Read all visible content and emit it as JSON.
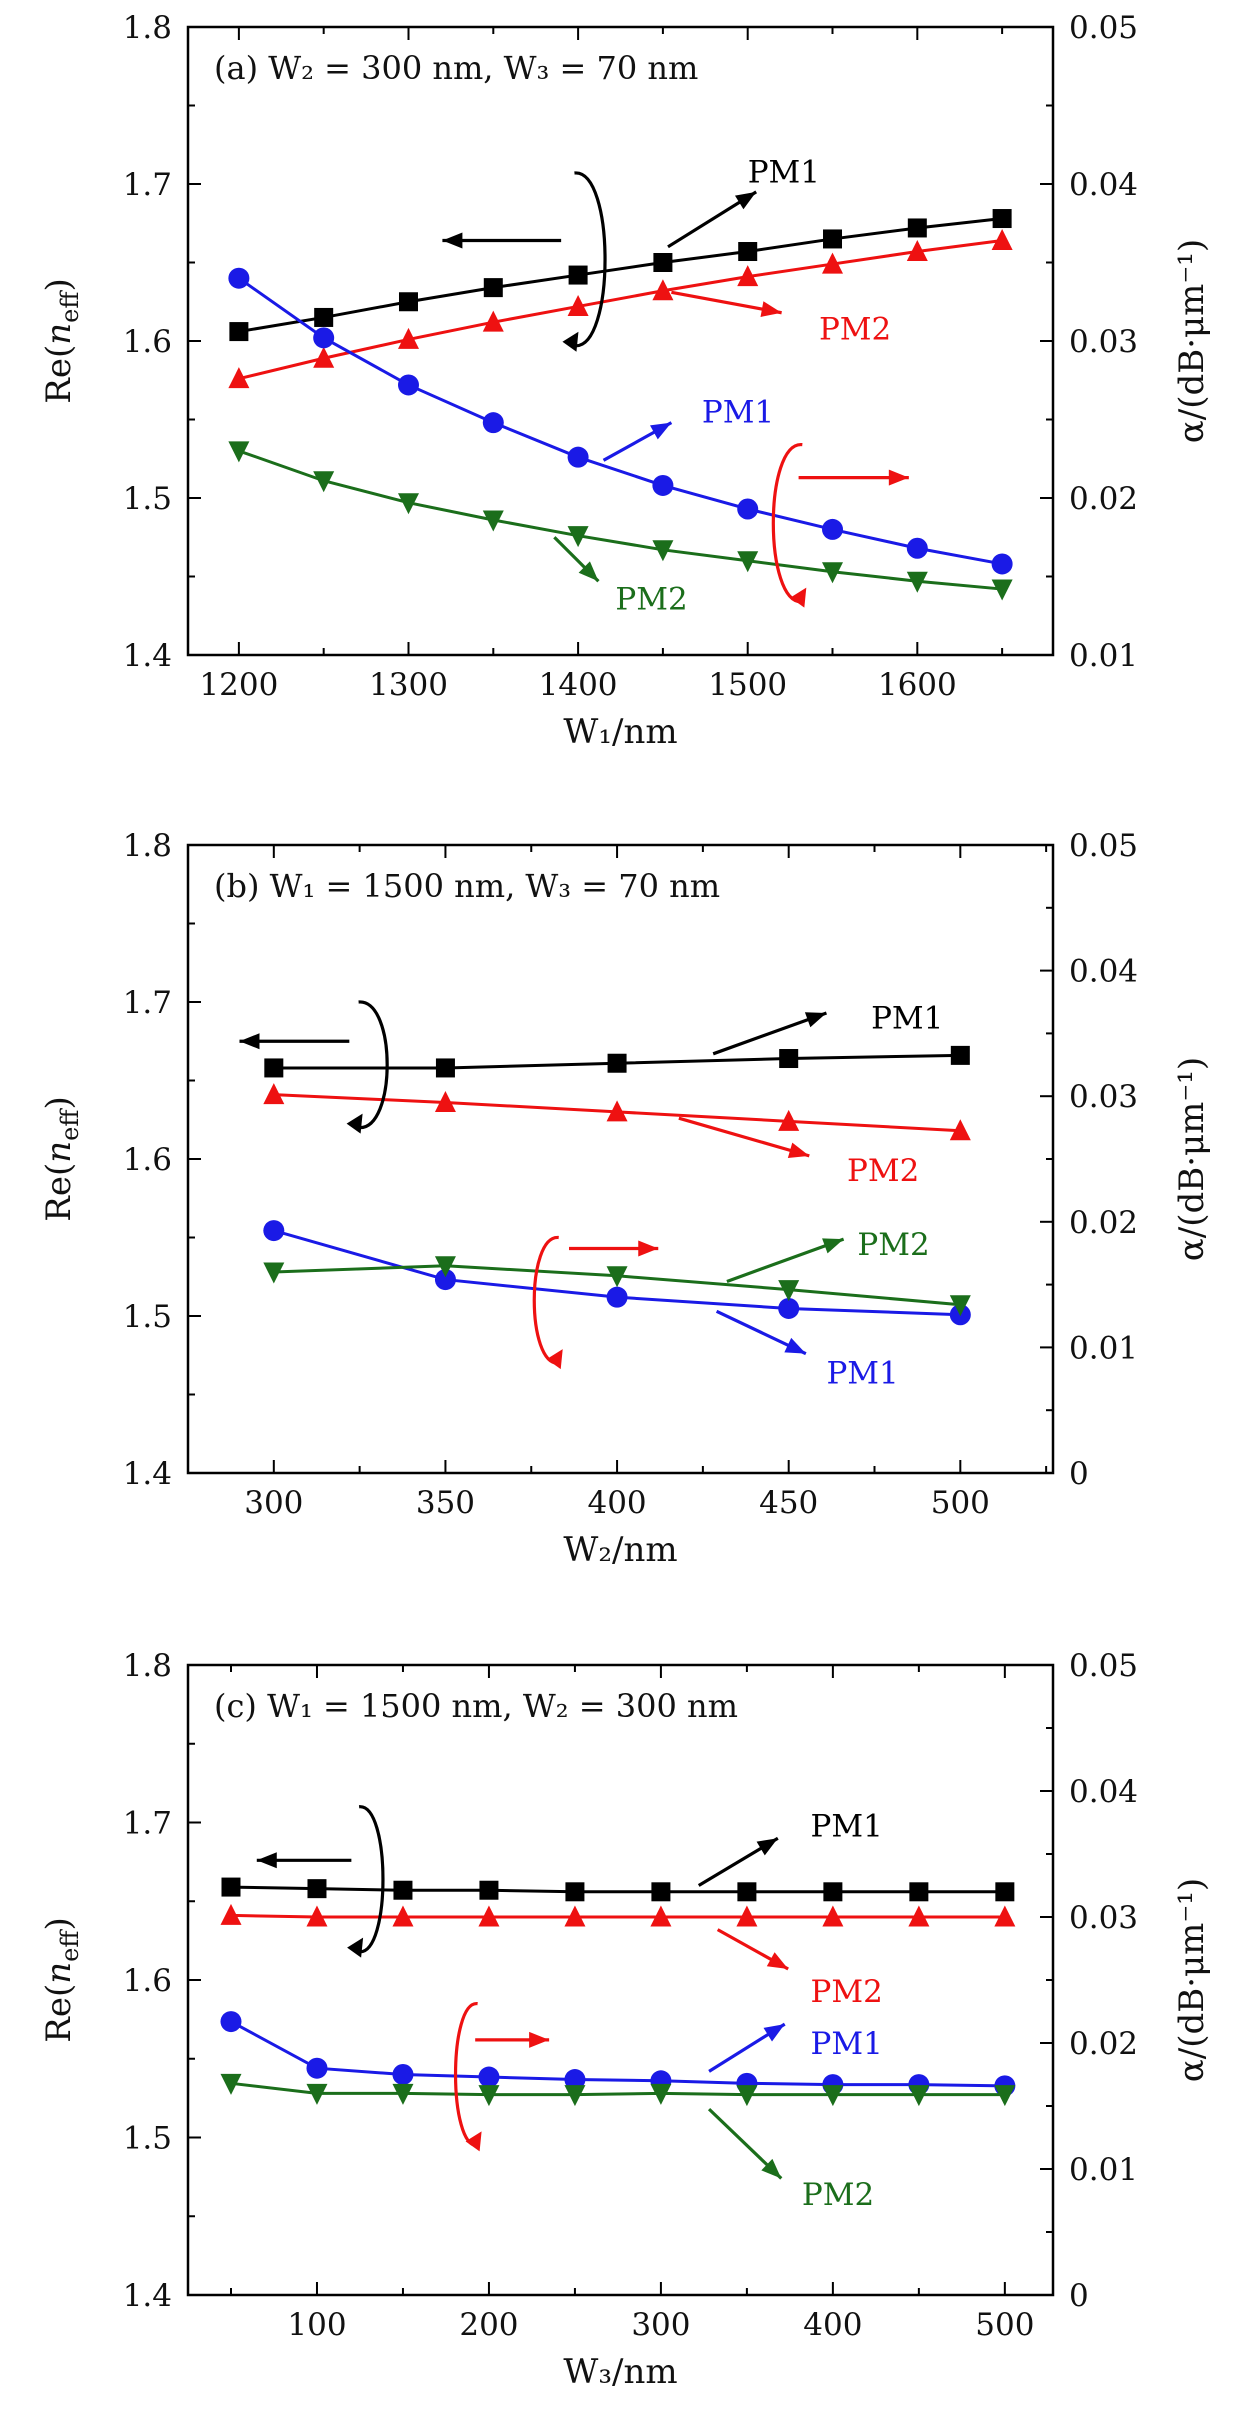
{
  "figure": {
    "panels": [
      "a",
      "b",
      "c"
    ]
  },
  "colors": {
    "black": "#000000",
    "red": "#ee1111",
    "blue": "#1a1ae6",
    "green": "#1b6e1b"
  },
  "chart_data": [
    {
      "id": "a",
      "type": "line",
      "title": "(a)   W₂ = 300 nm, W₃ = 70 nm",
      "xlabel": "W₁/nm",
      "ylabel": "Re(n_eff)",
      "ylabel_left_main": "Re(",
      "ylabel_left_n": "n",
      "ylabel_left_sub": "eff",
      "ylabel_left_close": ")",
      "ylabel_right": "α/(dB·μm⁻¹)",
      "xlim": [
        1170,
        1680
      ],
      "ylim_left": [
        1.4,
        1.8
      ],
      "ylim_right": [
        0.01,
        0.05
      ],
      "xticks": [
        1200,
        1300,
        1400,
        1500,
        1600
      ],
      "xtick_labels": [
        "1200",
        "1300",
        "1400",
        "1500",
        "1600"
      ],
      "yticks_left": [
        1.4,
        1.5,
        1.6,
        1.7,
        1.8
      ],
      "ytick_labels_left": [
        "1.4",
        "1.5",
        "1.6",
        "1.7",
        "1.8"
      ],
      "yticks_right": [
        0.01,
        0.02,
        0.03,
        0.04,
        0.05
      ],
      "ytick_labels_right": [
        "0.01",
        "0.02",
        "0.03",
        "0.04",
        "0.05"
      ],
      "x": [
        1200,
        1250,
        1300,
        1350,
        1400,
        1450,
        1500,
        1550,
        1600,
        1650
      ],
      "series": [
        {
          "name": "PM1 Re(n_eff)",
          "axis": "left",
          "color": "black",
          "marker": "square",
          "values": [
            1.606,
            1.615,
            1.625,
            1.634,
            1.642,
            1.65,
            1.657,
            1.665,
            1.672,
            1.678
          ]
        },
        {
          "name": "PM2 Re(n_eff)",
          "axis": "left",
          "color": "red",
          "marker": "triangle-up",
          "values": [
            1.576,
            1.589,
            1.601,
            1.612,
            1.622,
            1.632,
            1.641,
            1.649,
            1.657,
            1.664
          ]
        },
        {
          "name": "PM1 α",
          "axis": "right",
          "color": "blue",
          "marker": "circle",
          "values": [
            0.034,
            0.0302,
            0.0272,
            0.0248,
            0.0226,
            0.0208,
            0.0193,
            0.018,
            0.0168,
            0.0158
          ]
        },
        {
          "name": "PM2 α",
          "axis": "right",
          "color": "green",
          "marker": "triangle-down",
          "values": [
            0.023,
            0.0211,
            0.0197,
            0.0186,
            0.0176,
            0.0167,
            0.016,
            0.0153,
            0.0147,
            0.0142
          ]
        }
      ],
      "annotations": [
        {
          "text": "PM1",
          "color": "black",
          "tx": 1500,
          "ty": 1.708,
          "ax1": 1453,
          "ay1": 1.66,
          "ax2": 1505,
          "ay2": 1.695
        },
        {
          "text": "PM2",
          "color": "red",
          "tx": 1542,
          "ty": 1.608,
          "ax1": 1455,
          "ay1": 1.631,
          "ax2": 1520,
          "ay2": 1.618
        },
        {
          "text": "PM1",
          "color": "blue",
          "tx": 1473,
          "ty": 1.555,
          "ax1": 1415,
          "ay1": 1.524,
          "ax2": 1455,
          "ay2": 1.548
        },
        {
          "text": "PM2",
          "color": "green",
          "tx": 1422,
          "ty": 1.436,
          "ax1": 1386,
          "ay1": 1.475,
          "ax2": 1412,
          "ay2": 1.447
        }
      ],
      "axis_indicators": [
        {
          "color": "black",
          "side": "left",
          "cx": 1405,
          "cy": 1.652,
          "rx": 13,
          "ry": 0.055,
          "arrow_from": 1390,
          "arrow_to": 1320,
          "arrow_y": 1.664
        },
        {
          "color": "red",
          "side": "right",
          "cx": 1525,
          "cy": 1.484,
          "rx": 12,
          "ry": 0.05,
          "arrow_from": 1530,
          "arrow_to": 1595,
          "arrow_y": 1.513
        }
      ]
    },
    {
      "id": "b",
      "type": "line",
      "title": "(b)   W₁ = 1500 nm, W₃ = 70 nm",
      "xlabel": "W₂/nm",
      "ylabel": "Re(n_eff)",
      "ylabel_left_main": "Re(",
      "ylabel_left_n": "n",
      "ylabel_left_sub": "eff",
      "ylabel_left_close": ")",
      "ylabel_right": "α/(dB·μm⁻¹)",
      "xlim": [
        275,
        527
      ],
      "ylim_left": [
        1.4,
        1.8
      ],
      "ylim_right": [
        0,
        0.05
      ],
      "xticks": [
        300,
        350,
        400,
        450,
        500
      ],
      "xtick_labels": [
        "300",
        "350",
        "400",
        "450",
        "500"
      ],
      "yticks_left": [
        1.4,
        1.5,
        1.6,
        1.7,
        1.8
      ],
      "ytick_labels_left": [
        "1.4",
        "1.5",
        "1.6",
        "1.7",
        "1.8"
      ],
      "yticks_right": [
        0,
        0.01,
        0.02,
        0.03,
        0.04,
        0.05
      ],
      "ytick_labels_right": [
        "0",
        "0.01",
        "0.02",
        "0.03",
        "0.04",
        "0.05"
      ],
      "x": [
        300,
        350,
        400,
        450,
        500
      ],
      "series": [
        {
          "name": "PM1 Re(n_eff)",
          "axis": "left",
          "color": "black",
          "marker": "square",
          "values": [
            1.658,
            1.658,
            1.661,
            1.664,
            1.666
          ]
        },
        {
          "name": "PM2 Re(n_eff)",
          "axis": "left",
          "color": "red",
          "marker": "triangle-up",
          "values": [
            1.641,
            1.636,
            1.63,
            1.624,
            1.618
          ]
        },
        {
          "name": "PM1 α",
          "axis": "right",
          "color": "blue",
          "marker": "circle",
          "values": [
            0.0193,
            0.0154,
            0.014,
            0.0131,
            0.0126
          ]
        },
        {
          "name": "PM2 α",
          "axis": "right",
          "color": "green",
          "marker": "triangle-down",
          "values": [
            0.016,
            0.0165,
            0.0157,
            0.0146,
            0.0134
          ]
        }
      ],
      "annotations": [
        {
          "text": "PM1",
          "color": "black",
          "tx": 474,
          "ty": 1.69,
          "ax1": 428,
          "ay1": 1.667,
          "ax2": 461,
          "ay2": 1.693
        },
        {
          "text": "PM2",
          "color": "red",
          "tx": 467,
          "ty": 1.593,
          "ax1": 418,
          "ay1": 1.626,
          "ax2": 456,
          "ay2": 1.602
        },
        {
          "text": "PM2",
          "color": "green",
          "tx": 470,
          "ty": 1.546,
          "ax1": 432,
          "ay1": 1.522,
          "ax2": 466,
          "ay2": 1.549
        },
        {
          "text": "PM1",
          "color": "blue",
          "tx": 461,
          "ty": 1.464,
          "ax1": 429,
          "ay1": 1.503,
          "ax2": 455,
          "ay2": 1.476
        }
      ],
      "axis_indicators": [
        {
          "color": "black",
          "side": "left",
          "cx": 328,
          "cy": 1.66,
          "rx": 6,
          "ry": 0.04,
          "arrow_from": 322,
          "arrow_to": 290,
          "arrow_y": 1.675
        },
        {
          "color": "red",
          "side": "right",
          "cx": 380,
          "cy": 1.51,
          "rx": 5,
          "ry": 0.04,
          "arrow_from": 386,
          "arrow_to": 412,
          "arrow_y": 1.543
        }
      ]
    },
    {
      "id": "c",
      "type": "line",
      "title": "(c)   W₁ = 1500 nm, W₂ = 300 nm",
      "xlabel": "W₃/nm",
      "ylabel": "Re(n_eff)",
      "ylabel_left_main": "Re(",
      "ylabel_left_n": "n",
      "ylabel_left_sub": "eff",
      "ylabel_left_close": ")",
      "ylabel_right": "α/(dB·μm⁻¹)",
      "xlim": [
        25,
        528
      ],
      "ylim_left": [
        1.4,
        1.8
      ],
      "ylim_right": [
        0,
        0.05
      ],
      "xticks": [
        100,
        200,
        300,
        400,
        500
      ],
      "xtick_labels": [
        "100",
        "200",
        "300",
        "400",
        "500"
      ],
      "yticks_left": [
        1.4,
        1.5,
        1.6,
        1.7,
        1.8
      ],
      "ytick_labels_left": [
        "1.4",
        "1.5",
        "1.6",
        "1.7",
        "1.8"
      ],
      "yticks_right": [
        0,
        0.01,
        0.02,
        0.03,
        0.04,
        0.05
      ],
      "ytick_labels_right": [
        "0",
        "0.01",
        "0.02",
        "0.03",
        "0.04",
        "0.05"
      ],
      "x": [
        50,
        100,
        150,
        200,
        250,
        300,
        350,
        400,
        450,
        500
      ],
      "series": [
        {
          "name": "PM1 Re(n_eff)",
          "axis": "left",
          "color": "black",
          "marker": "square",
          "values": [
            1.659,
            1.658,
            1.657,
            1.657,
            1.656,
            1.656,
            1.656,
            1.656,
            1.656,
            1.656
          ]
        },
        {
          "name": "PM2 Re(n_eff)",
          "axis": "left",
          "color": "red",
          "marker": "triangle-up",
          "values": [
            1.641,
            1.64,
            1.64,
            1.64,
            1.64,
            1.64,
            1.64,
            1.64,
            1.64,
            1.64
          ]
        },
        {
          "name": "PM1 α",
          "axis": "right",
          "color": "blue",
          "marker": "circle",
          "values": [
            0.0217,
            0.018,
            0.0175,
            0.0173,
            0.0171,
            0.017,
            0.0168,
            0.0167,
            0.0167,
            0.0166
          ]
        },
        {
          "name": "PM2 α",
          "axis": "right",
          "color": "green",
          "marker": "triangle-down",
          "values": [
            0.0168,
            0.016,
            0.016,
            0.0159,
            0.0159,
            0.016,
            0.0159,
            0.0159,
            0.0159,
            0.0159
          ]
        }
      ],
      "annotations": [
        {
          "text": "PM1",
          "color": "black",
          "tx": 387,
          "ty": 1.698,
          "ax1": 322,
          "ay1": 1.66,
          "ax2": 368,
          "ay2": 1.69
        },
        {
          "text": "PM2",
          "color": "red",
          "tx": 387,
          "ty": 1.593,
          "ax1": 333,
          "ay1": 1.632,
          "ax2": 374,
          "ay2": 1.607
        },
        {
          "text": "PM1",
          "color": "blue",
          "tx": 387,
          "ty": 1.56,
          "ax1": 328,
          "ay1": 1.542,
          "ax2": 372,
          "ay2": 1.572
        },
        {
          "text": "PM2",
          "color": "green",
          "tx": 382,
          "ty": 1.464,
          "ax1": 328,
          "ay1": 1.518,
          "ax2": 370,
          "ay2": 1.474
        }
      ],
      "axis_indicators": [
        {
          "color": "black",
          "side": "left",
          "cx": 130,
          "cy": 1.664,
          "rx": 10,
          "ry": 0.046,
          "arrow_from": 120,
          "arrow_to": 65,
          "arrow_y": 1.676
        },
        {
          "color": "red",
          "side": "right",
          "cx": 188,
          "cy": 1.54,
          "rx": 9,
          "ry": 0.045,
          "arrow_from": 192,
          "arrow_to": 235,
          "arrow_y": 1.562
        }
      ]
    }
  ]
}
